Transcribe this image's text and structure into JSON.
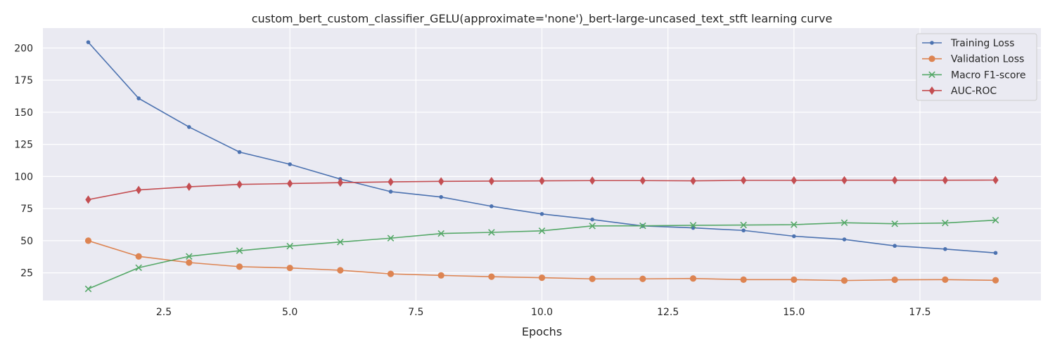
{
  "chart_data": {
    "type": "line",
    "title": "custom_bert_custom_classifier_GELU(approximate='none')_bert-large-uncased_text_stft learning curve",
    "xlabel": "Epochs",
    "ylabel": "",
    "xlim": [
      0.1,
      19.9
    ],
    "ylim": [
      3.5,
      215.5
    ],
    "xticks": [
      2.5,
      5.0,
      7.5,
      10.0,
      12.5,
      15.0,
      17.5
    ],
    "xtick_labels": [
      "2.5",
      "5.0",
      "7.5",
      "10.0",
      "12.5",
      "15.0",
      "17.5"
    ],
    "yticks": [
      25,
      50,
      75,
      100,
      125,
      150,
      175,
      200
    ],
    "ytick_labels": [
      "25",
      "50",
      "75",
      "100",
      "125",
      "150",
      "175",
      "200"
    ],
    "grid": true,
    "legend_position": "top-right",
    "x": [
      1,
      2,
      3,
      4,
      5,
      6,
      7,
      8,
      9,
      10,
      11,
      12,
      13,
      14,
      15,
      16,
      17,
      18,
      19
    ],
    "series": [
      {
        "name": "Training Loss",
        "color": "#4c72b0",
        "marker": "dot",
        "values": [
          204.5,
          160.8,
          138.5,
          119.0,
          109.5,
          98.0,
          88.2,
          84.0,
          76.8,
          70.8,
          66.5,
          61.5,
          60.0,
          58.0,
          53.5,
          51.0,
          46.0,
          43.5,
          40.5
        ]
      },
      {
        "name": "Validation Loss",
        "color": "#dd8452",
        "marker": "circle",
        "values": [
          50.0,
          37.8,
          33.0,
          29.8,
          28.8,
          27.0,
          24.2,
          23.0,
          22.0,
          21.2,
          20.3,
          20.3,
          20.6,
          19.7,
          19.7,
          19.0,
          19.6,
          19.7,
          19.2
        ]
      },
      {
        "name": "Macro F1-score",
        "color": "#55a868",
        "marker": "x",
        "values": [
          12.5,
          29.0,
          37.8,
          42.2,
          45.8,
          49.0,
          52.0,
          55.6,
          56.5,
          57.7,
          61.5,
          61.6,
          62.0,
          62.2,
          62.5,
          64.0,
          63.2,
          63.8,
          66.0
        ]
      },
      {
        "name": "AUC-ROC",
        "color": "#c44e52",
        "marker": "diamond",
        "values": [
          82.0,
          89.5,
          92.0,
          93.8,
          94.5,
          95.2,
          95.8,
          96.2,
          96.4,
          96.6,
          96.8,
          96.8,
          96.6,
          97.0,
          97.0,
          97.1,
          97.1,
          97.1,
          97.2
        ]
      }
    ]
  }
}
